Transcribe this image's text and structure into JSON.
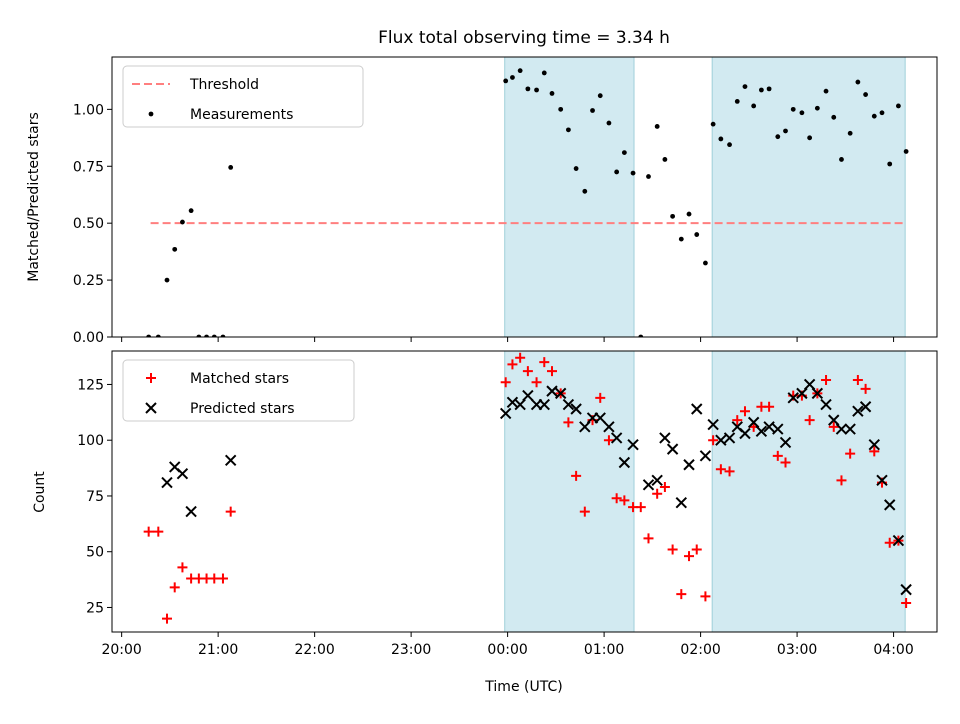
{
  "chart_data": [
    {
      "type": "scatter",
      "title": "Flux total observing time = 3.34 h",
      "xlabel": "",
      "ylabel": "Matched/Predicted stars",
      "xlim": [
        -0.1,
        8.45
      ],
      "ylim": [
        0.0,
        1.23
      ],
      "x_ticks": [
        0,
        1,
        2,
        3,
        4,
        5,
        6,
        7,
        8
      ],
      "y_ticks": [
        "0.00",
        "0.25",
        "0.50",
        "0.75",
        "1.00"
      ],
      "y_tick_values": [
        0,
        0.25,
        0.5,
        0.75,
        1.0
      ],
      "shaded_ranges": [
        [
          3.97,
          5.31
        ],
        [
          6.12,
          8.12
        ]
      ],
      "shade_color": "#add8e6",
      "legend_position": "upper left",
      "series": [
        {
          "name": "Threshold",
          "style": "dashed-line",
          "color": "#ff7f7f",
          "points": [
            [
              0.3,
              0.5
            ],
            [
              8.12,
              0.5
            ]
          ]
        },
        {
          "name": "Measurements",
          "style": "dot",
          "color": "#000000",
          "points": [
            [
              0.28,
              0.0
            ],
            [
              0.38,
              0.0
            ],
            [
              0.47,
              0.25
            ],
            [
              0.55,
              0.385
            ],
            [
              0.63,
              0.505
            ],
            [
              0.72,
              0.555
            ],
            [
              0.8,
              0.0
            ],
            [
              0.88,
              0.0
            ],
            [
              0.96,
              0.0
            ],
            [
              1.05,
              0.0
            ],
            [
              1.13,
              0.745
            ],
            [
              3.98,
              1.125
            ],
            [
              4.05,
              1.14
            ],
            [
              4.13,
              1.17
            ],
            [
              4.21,
              1.09
            ],
            [
              4.3,
              1.085
            ],
            [
              4.38,
              1.16
            ],
            [
              4.46,
              1.07
            ],
            [
              4.55,
              1.0
            ],
            [
              4.63,
              0.91
            ],
            [
              4.71,
              0.74
            ],
            [
              4.8,
              0.64
            ],
            [
              4.88,
              0.995
            ],
            [
              4.96,
              1.06
            ],
            [
              5.05,
              0.94
            ],
            [
              5.13,
              0.725
            ],
            [
              5.21,
              0.81
            ],
            [
              5.3,
              0.72
            ],
            [
              5.38,
              0.0
            ],
            [
              5.46,
              0.705
            ],
            [
              5.55,
              0.925
            ],
            [
              5.63,
              0.78
            ],
            [
              5.71,
              0.53
            ],
            [
              5.8,
              0.43
            ],
            [
              5.88,
              0.54
            ],
            [
              5.96,
              0.45
            ],
            [
              6.05,
              0.325
            ],
            [
              6.13,
              0.935
            ],
            [
              6.21,
              0.87
            ],
            [
              6.3,
              0.845
            ],
            [
              6.38,
              1.035
            ],
            [
              6.46,
              1.1
            ],
            [
              6.55,
              1.015
            ],
            [
              6.63,
              1.085
            ],
            [
              6.71,
              1.09
            ],
            [
              6.8,
              0.88
            ],
            [
              6.88,
              0.905
            ],
            [
              6.96,
              1.0
            ],
            [
              7.05,
              0.985
            ],
            [
              7.13,
              0.875
            ],
            [
              7.21,
              1.005
            ],
            [
              7.3,
              1.08
            ],
            [
              7.38,
              0.965
            ],
            [
              7.46,
              0.78
            ],
            [
              7.55,
              0.895
            ],
            [
              7.63,
              1.12
            ],
            [
              7.71,
              1.065
            ],
            [
              7.8,
              0.97
            ],
            [
              7.88,
              0.985
            ],
            [
              7.96,
              0.76
            ],
            [
              8.05,
              1.015
            ],
            [
              8.13,
              0.815
            ]
          ]
        }
      ]
    },
    {
      "type": "scatter",
      "title": "",
      "xlabel": "Time (UTC)",
      "ylabel": "Count",
      "xlim": [
        -0.1,
        8.45
      ],
      "ylim": [
        14,
        140
      ],
      "x_ticks": [
        0,
        1,
        2,
        3,
        4,
        5,
        6,
        7,
        8
      ],
      "x_tick_labels": [
        "20:00",
        "21:00",
        "22:00",
        "23:00",
        "00:00",
        "01:00",
        "02:00",
        "03:00",
        "04:00"
      ],
      "y_ticks": [
        "25",
        "50",
        "75",
        "100",
        "125"
      ],
      "y_tick_values": [
        25,
        50,
        75,
        100,
        125
      ],
      "shaded_ranges": [
        [
          3.97,
          5.31
        ],
        [
          6.12,
          8.12
        ]
      ],
      "shade_color": "#add8e6",
      "legend_position": "upper left",
      "series": [
        {
          "name": "Matched stars",
          "marker": "+",
          "color": "#ff0000",
          "points": [
            [
              0.28,
              59
            ],
            [
              0.38,
              59
            ],
            [
              0.47,
              20
            ],
            [
              0.55,
              34
            ],
            [
              0.63,
              43
            ],
            [
              0.72,
              38
            ],
            [
              0.8,
              38
            ],
            [
              0.88,
              38
            ],
            [
              0.96,
              38
            ],
            [
              1.05,
              38
            ],
            [
              1.13,
              68
            ],
            [
              3.98,
              126
            ],
            [
              4.05,
              134
            ],
            [
              4.13,
              137
            ],
            [
              4.21,
              131
            ],
            [
              4.3,
              126
            ],
            [
              4.38,
              135
            ],
            [
              4.46,
              131
            ],
            [
              4.55,
              121
            ],
            [
              4.63,
              108
            ],
            [
              4.71,
              84
            ],
            [
              4.8,
              68
            ],
            [
              4.88,
              109
            ],
            [
              4.96,
              119
            ],
            [
              5.05,
              100
            ],
            [
              5.13,
              74
            ],
            [
              5.21,
              73
            ],
            [
              5.3,
              70
            ],
            [
              5.38,
              70
            ],
            [
              5.46,
              56
            ],
            [
              5.55,
              76
            ],
            [
              5.63,
              79
            ],
            [
              5.71,
              51
            ],
            [
              5.8,
              31
            ],
            [
              5.88,
              48
            ],
            [
              5.96,
              51
            ],
            [
              6.05,
              30
            ],
            [
              6.13,
              100
            ],
            [
              6.21,
              87
            ],
            [
              6.3,
              86
            ],
            [
              6.38,
              109
            ],
            [
              6.46,
              113
            ],
            [
              6.55,
              106
            ],
            [
              6.63,
              115
            ],
            [
              6.71,
              115
            ],
            [
              6.8,
              93
            ],
            [
              6.88,
              90
            ],
            [
              6.96,
              120
            ],
            [
              7.05,
              120
            ],
            [
              7.13,
              109
            ],
            [
              7.21,
              121
            ],
            [
              7.3,
              127
            ],
            [
              7.38,
              106
            ],
            [
              7.46,
              82
            ],
            [
              7.55,
              94
            ],
            [
              7.63,
              127
            ],
            [
              7.71,
              123
            ],
            [
              7.8,
              95
            ],
            [
              7.88,
              81
            ],
            [
              7.96,
              54
            ],
            [
              8.05,
              55
            ],
            [
              8.13,
              27
            ]
          ]
        },
        {
          "name": "Predicted stars",
          "marker": "x",
          "color": "#000000",
          "points": [
            [
              0.47,
              81
            ],
            [
              0.55,
              88
            ],
            [
              0.63,
              85
            ],
            [
              0.72,
              68
            ],
            [
              1.13,
              91
            ],
            [
              3.98,
              112
            ],
            [
              4.05,
              117
            ],
            [
              4.13,
              116
            ],
            [
              4.21,
              120
            ],
            [
              4.3,
              116
            ],
            [
              4.38,
              116
            ],
            [
              4.46,
              122
            ],
            [
              4.55,
              121
            ],
            [
              4.63,
              116
            ],
            [
              4.71,
              114
            ],
            [
              4.8,
              106
            ],
            [
              4.88,
              110
            ],
            [
              4.96,
              110
            ],
            [
              5.05,
              106
            ],
            [
              5.13,
              101
            ],
            [
              5.21,
              90
            ],
            [
              5.3,
              98
            ],
            [
              5.46,
              80
            ],
            [
              5.55,
              82
            ],
            [
              5.63,
              101
            ],
            [
              5.71,
              96
            ],
            [
              5.8,
              72
            ],
            [
              5.88,
              89
            ],
            [
              5.96,
              114
            ],
            [
              6.05,
              93
            ],
            [
              6.13,
              107
            ],
            [
              6.21,
              100
            ],
            [
              6.3,
              101
            ],
            [
              6.38,
              106
            ],
            [
              6.46,
              103
            ],
            [
              6.55,
              108
            ],
            [
              6.63,
              104
            ],
            [
              6.71,
              106
            ],
            [
              6.8,
              105
            ],
            [
              6.88,
              99
            ],
            [
              6.96,
              119
            ],
            [
              7.05,
              121
            ],
            [
              7.13,
              125
            ],
            [
              7.21,
              121
            ],
            [
              7.3,
              116
            ],
            [
              7.38,
              109
            ],
            [
              7.46,
              105
            ],
            [
              7.55,
              105
            ],
            [
              7.63,
              113
            ],
            [
              7.71,
              115
            ],
            [
              7.8,
              98
            ],
            [
              7.88,
              82
            ],
            [
              7.96,
              71
            ],
            [
              8.05,
              55
            ],
            [
              8.13,
              33
            ]
          ]
        }
      ]
    }
  ]
}
